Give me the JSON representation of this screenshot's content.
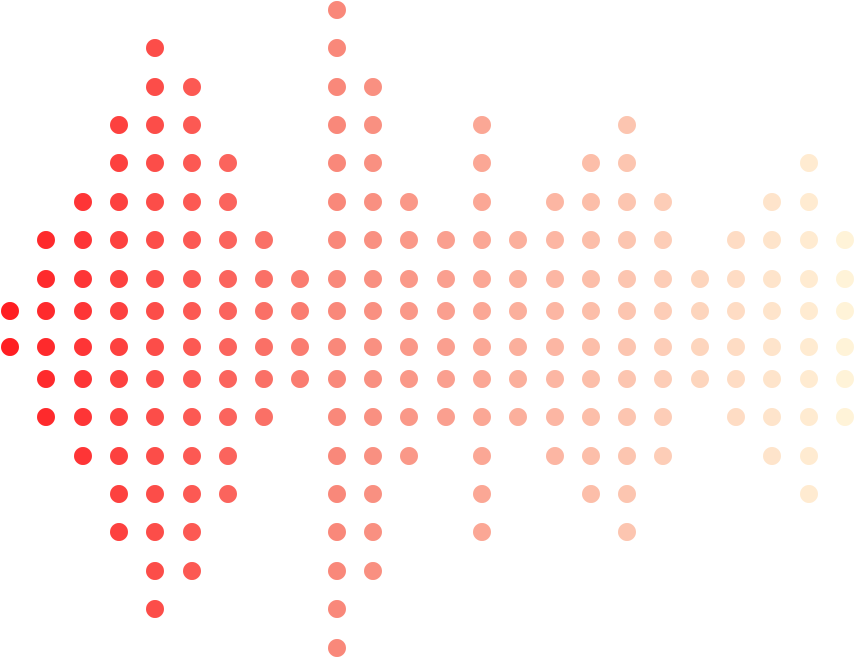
{
  "graphic": {
    "type": "dot-matrix-waveform",
    "colors": {
      "start": "#ff1e22",
      "mid": "#f98a7c",
      "end": "#fff3d8"
    },
    "columns": [
      {
        "rows": [
          8,
          9
        ]
      },
      {
        "rows": [
          6,
          11
        ]
      },
      {
        "rows": [
          5,
          12
        ]
      },
      {
        "rows": [
          3,
          14
        ]
      },
      {
        "rows": [
          1,
          16
        ]
      },
      {
        "rows": [
          2,
          15
        ]
      },
      {
        "rows": [
          4,
          13
        ]
      },
      {
        "rows": [
          6,
          11
        ]
      },
      {
        "rows": [
          7,
          10
        ]
      },
      {
        "rows": [
          0,
          17
        ]
      },
      {
        "rows": [
          2,
          15
        ]
      },
      {
        "rows": [
          5,
          12
        ]
      },
      {
        "rows": [
          6,
          11
        ]
      },
      {
        "rows": [
          3,
          14
        ]
      },
      {
        "rows": [
          6,
          11
        ]
      },
      {
        "rows": [
          5,
          12
        ]
      },
      {
        "rows": [
          4,
          13
        ]
      },
      {
        "rows": [
          3,
          14
        ]
      },
      {
        "rows": [
          5,
          12
        ]
      },
      {
        "rows": [
          7,
          10
        ]
      },
      {
        "rows": [
          6,
          11
        ]
      },
      {
        "rows": [
          5,
          12
        ]
      },
      {
        "rows": [
          4,
          13
        ]
      },
      {
        "rows": [
          6,
          11
        ]
      }
    ]
  }
}
